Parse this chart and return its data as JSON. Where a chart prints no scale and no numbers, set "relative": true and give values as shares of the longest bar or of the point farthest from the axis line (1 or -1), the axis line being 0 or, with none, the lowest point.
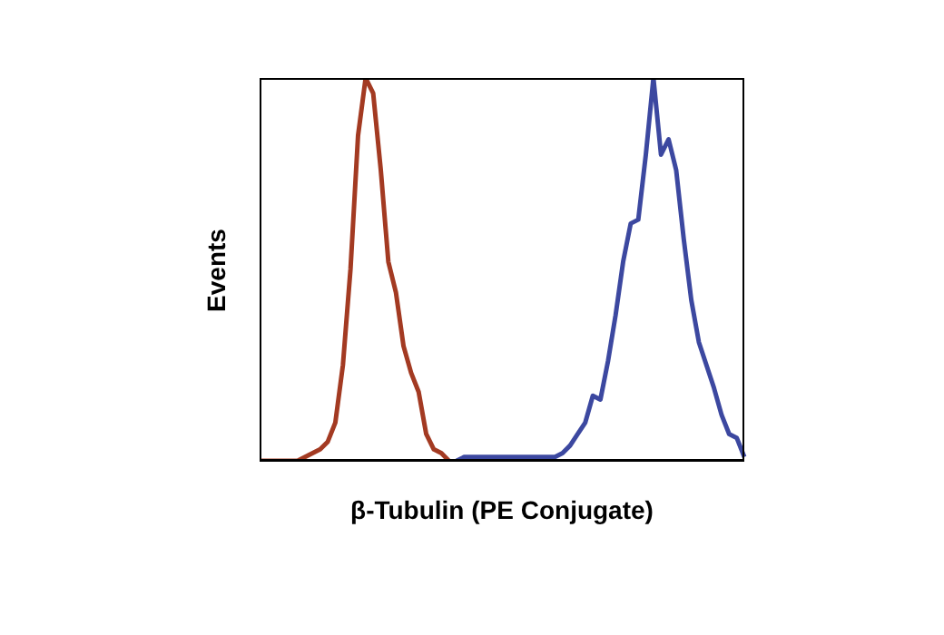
{
  "chart_data": {
    "type": "line",
    "xlabel": "β-Tubulin (PE Conjugate)",
    "ylabel": "Events",
    "relative": true,
    "legend": false,
    "grid": false,
    "marker": "none",
    "line_style": "solid",
    "categories": [
      null,
      null,
      null,
      null,
      null,
      null,
      null,
      null,
      null,
      null,
      null,
      null,
      null,
      null,
      null,
      null,
      null,
      null,
      null,
      null,
      null,
      null,
      null,
      null,
      null,
      null,
      null,
      null,
      null,
      null,
      null,
      null,
      null,
      null,
      null,
      null,
      null,
      null,
      null,
      null,
      null,
      null,
      null,
      null,
      null,
      null,
      null,
      null,
      null,
      null,
      null,
      null,
      null,
      null,
      null,
      null,
      null,
      null,
      null,
      null,
      null,
      null,
      null,
      null,
      null
    ],
    "series": [
      {
        "color": "#a33a22",
        "values": [
          0,
          0,
          0,
          0,
          0,
          0,
          0.01,
          0.02,
          0.03,
          0.05,
          0.1,
          0.25,
          0.5,
          0.85,
          1,
          0.96,
          0.76,
          0.52,
          0.44,
          0.3,
          0.23,
          0.18,
          0.07,
          0.03,
          0.02,
          0,
          null,
          null,
          null,
          null,
          null,
          null,
          null,
          null,
          null,
          null,
          null,
          null,
          null,
          null,
          null,
          null,
          null,
          null,
          null,
          null,
          null,
          null,
          null,
          null,
          null,
          null,
          null,
          null,
          null,
          null,
          null,
          null,
          null,
          null,
          null,
          null,
          null,
          null,
          null
        ]
      },
      {
        "color": "#3c48a0",
        "values": [
          null,
          null,
          null,
          null,
          null,
          null,
          null,
          null,
          null,
          null,
          null,
          null,
          null,
          null,
          null,
          null,
          null,
          null,
          null,
          null,
          null,
          null,
          null,
          null,
          null,
          null,
          0,
          0.01,
          0.01,
          0.01,
          0.01,
          0.01,
          0.01,
          0.01,
          0.01,
          0.01,
          0.01,
          0.01,
          0.01,
          0.01,
          0.02,
          0.04,
          0.07,
          0.1,
          0.17,
          0.16,
          0.26,
          0.38,
          0.52,
          0.62,
          0.63,
          0.8,
          1,
          0.8,
          0.84,
          0.76,
          0.58,
          0.42,
          0.31,
          0.25,
          0.19,
          0.12,
          0.07,
          0.06,
          0.01
        ]
      }
    ]
  }
}
